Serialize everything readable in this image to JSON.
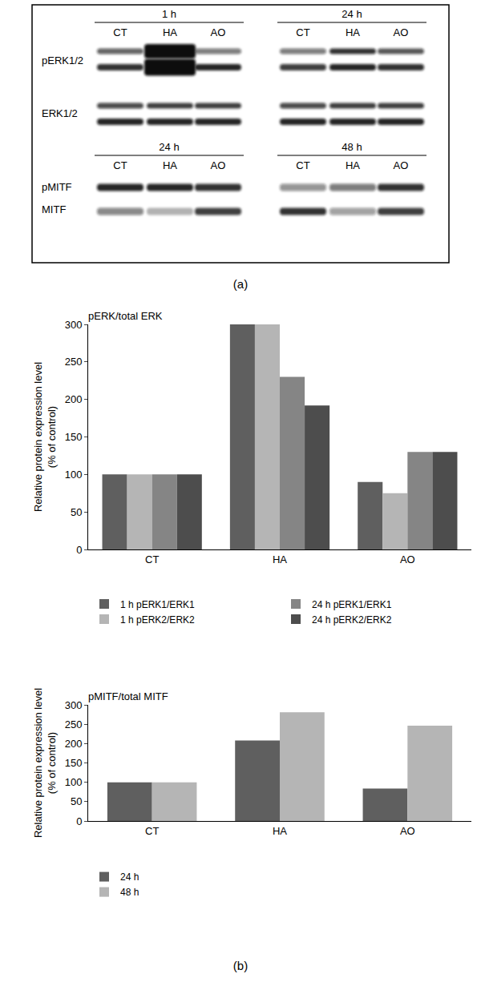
{
  "panel_a": {
    "label": "(a)",
    "blots": [
      {
        "times": [
          "1 h",
          "24 h"
        ],
        "lanes": [
          "CT",
          "HA",
          "AO"
        ],
        "rows": [
          "pERK1/2",
          "ERK1/2"
        ]
      },
      {
        "times": [
          "24 h",
          "48 h"
        ],
        "lanes": [
          "CT",
          "HA",
          "AO"
        ],
        "rows": [
          "pMITF",
          "MITF"
        ]
      }
    ]
  },
  "panel_b": {
    "label": "(b)"
  },
  "chart_data": [
    {
      "type": "bar",
      "title": "pERK/total ERK",
      "ylabel": [
        "Relative protein expression level",
        "(% of control)"
      ],
      "categories": [
        "CT",
        "HA",
        "AO"
      ],
      "series": [
        {
          "name": "1 h pERK1/ERK1",
          "color": "#5f5f5f",
          "values": [
            100,
            300,
            90
          ]
        },
        {
          "name": "1 h pERK2/ERK2",
          "color": "#b5b5b5",
          "values": [
            100,
            300,
            75
          ]
        },
        {
          "name": "24 h pERK1/ERK1",
          "color": "#858585",
          "values": [
            100,
            230,
            130
          ]
        },
        {
          "name": "24 h pERK2/ERK2",
          "color": "#4d4d4d",
          "values": [
            100,
            192,
            130
          ]
        }
      ],
      "ylim": [
        0,
        300
      ],
      "yticks": [
        0,
        50,
        100,
        150,
        200,
        250,
        300
      ],
      "grid": false,
      "legend": "bottom"
    },
    {
      "type": "bar",
      "title": "pMITF/total MITF",
      "ylabel": [
        "Relative protein expression level",
        "(% of control)"
      ],
      "categories": [
        "CT",
        "HA",
        "AO"
      ],
      "series": [
        {
          "name": "24 h",
          "color": "#5f5f5f",
          "values": [
            100,
            208,
            84
          ]
        },
        {
          "name": "48 h",
          "color": "#b5b5b5",
          "values": [
            100,
            281,
            246
          ]
        }
      ],
      "ylim": [
        0,
        300
      ],
      "yticks": [
        0,
        50,
        100,
        150,
        200,
        250,
        300
      ],
      "grid": false,
      "legend": "bottom"
    }
  ]
}
